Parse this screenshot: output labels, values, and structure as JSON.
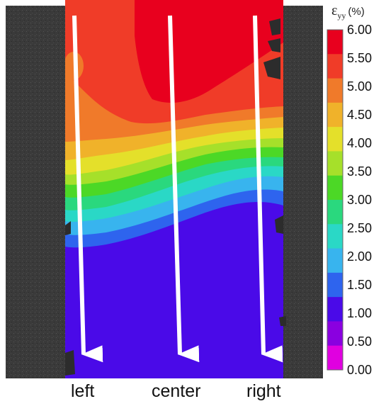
{
  "colorbar": {
    "symbol": "ε",
    "subscript": "yy",
    "unit": "(%)",
    "ticks": [
      "6.00",
      "5.50",
      "5.00",
      "4.50",
      "4.00",
      "3.50",
      "3.00",
      "2.50",
      "2.00",
      "1.50",
      "1.00",
      "0.50",
      "0.00"
    ],
    "colors": [
      "#e8001e",
      "#f03c28",
      "#f07a2a",
      "#f0b22a",
      "#e4e02a",
      "#a6e02a",
      "#4cd826",
      "#2ad87e",
      "#2ad8c6",
      "#38b4ee",
      "#2e64ee",
      "#4a0ae8",
      "#8a00e0",
      "#e000e0"
    ]
  },
  "arrows": [
    {
      "name": "left",
      "label": "left"
    },
    {
      "name": "center",
      "label": "center"
    },
    {
      "name": "right",
      "label": "right"
    }
  ]
}
